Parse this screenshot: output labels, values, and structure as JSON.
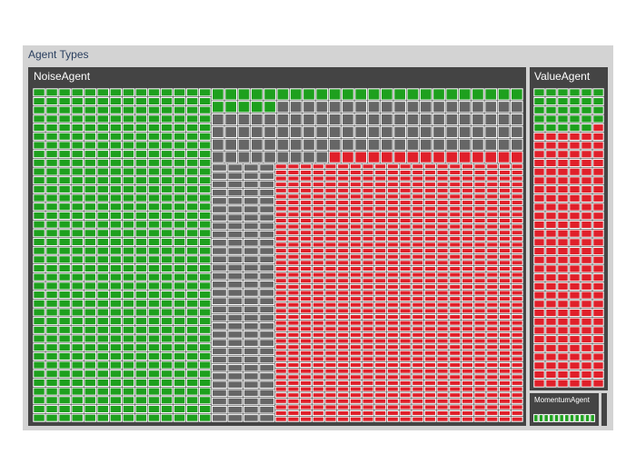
{
  "chart_data": {
    "type": "treemap",
    "root": {
      "label": "Agent Types"
    },
    "groups": [
      {
        "name": "NoiseAgent",
        "agent_count": 1640,
        "composition": {
          "green": 532,
          "gray": 225,
          "red": 883
        }
      },
      {
        "name": "ValueAgent",
        "agent_count": 204,
        "composition": {
          "green": 29,
          "gray": 0,
          "red": 175
        }
      },
      {
        "name": "MomentumAgent",
        "agent_count": 12,
        "composition": {
          "green": 12,
          "gray": 0,
          "red": 0
        }
      }
    ],
    "colors": {
      "root_background": "#d3d3d3",
      "group_background": "#444444",
      "green": "#1ea01e",
      "gray": "#666666",
      "red": "#e0202a",
      "tile_border": "#ffffff",
      "root_title": "#2a3f5f",
      "group_title": "#ffffff"
    },
    "legend": "none",
    "grid": false
  }
}
